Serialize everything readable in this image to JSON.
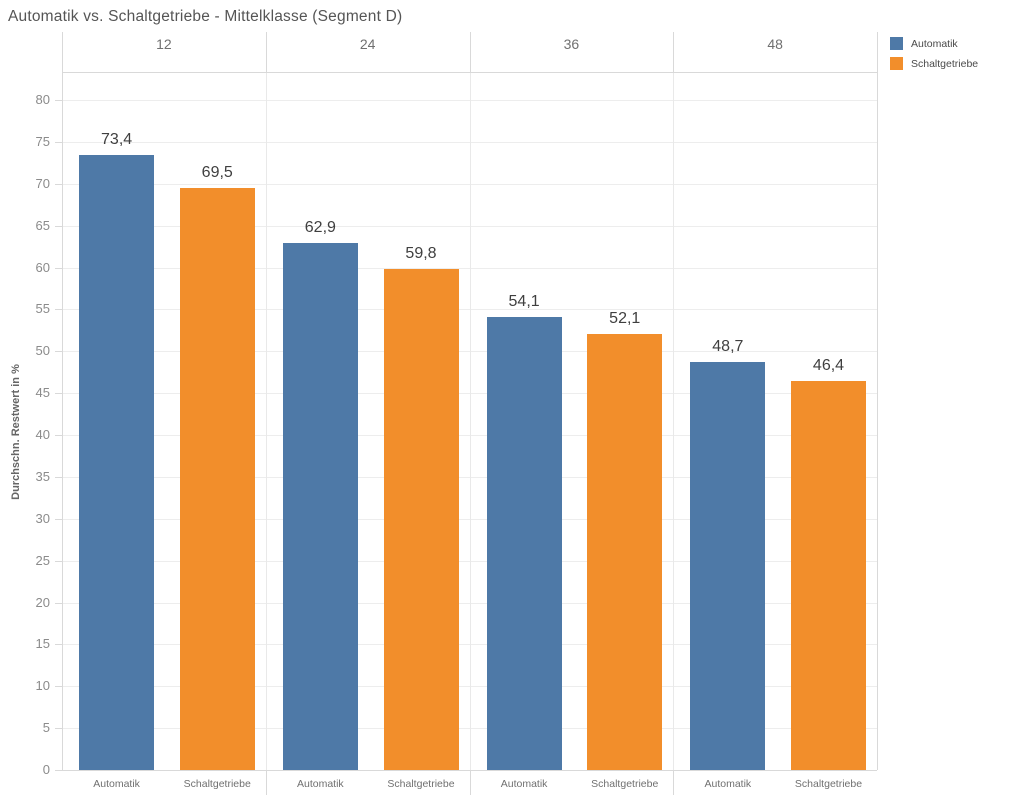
{
  "chart_data": {
    "type": "bar",
    "title": "Automatik vs. Schaltgetriebe - Mittelklasse (Segment D)",
    "xlabel": "",
    "ylabel": "Durchschn. Restwert in %",
    "ylim": [
      0,
      80
    ],
    "y_tick_step": 5,
    "y_tick_labels": [
      "0",
      "5",
      "10",
      "15",
      "20",
      "25",
      "30",
      "35",
      "40",
      "45",
      "50",
      "55",
      "60",
      "65",
      "70",
      "75",
      "80"
    ],
    "grid": true,
    "legend_position": "top-right",
    "categories": [
      "12",
      "24",
      "36",
      "48"
    ],
    "series": [
      {
        "name": "Automatik",
        "color": "#4e79a7",
        "values": [
          73.4,
          62.9,
          54.1,
          48.7
        ],
        "value_labels": [
          "73,4",
          "62,9",
          "54,1",
          "48,7"
        ]
      },
      {
        "name": "Schaltgetriebe",
        "color": "#f28e2b",
        "values": [
          69.5,
          59.8,
          52.1,
          46.4
        ],
        "value_labels": [
          "69,5",
          "59,8",
          "52,1",
          "46,4"
        ]
      }
    ]
  },
  "legend": {
    "items": [
      {
        "label": "Automatik",
        "color": "#4e79a7"
      },
      {
        "label": "Schaltgetriebe",
        "color": "#f28e2b"
      }
    ]
  },
  "colors": {
    "automatik": "#4e79a7",
    "schaltgetriebe": "#f28e2b",
    "title_text": "#555555",
    "axis_text": "#8b8b8b",
    "frame_line": "#d9d9d9",
    "gridline": "#ededed"
  }
}
